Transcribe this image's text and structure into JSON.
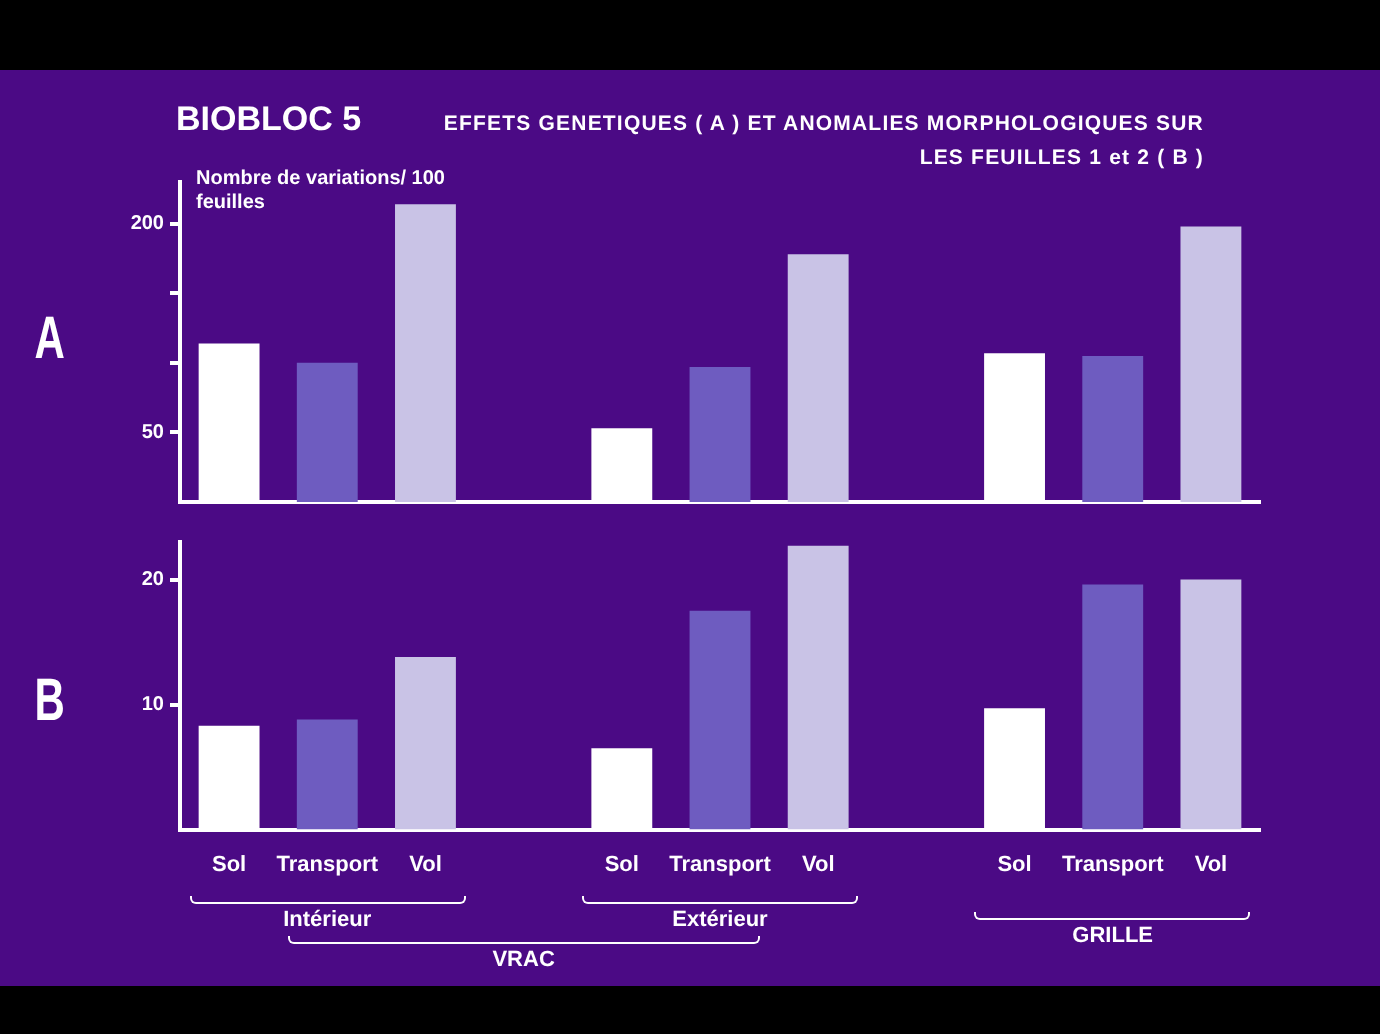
{
  "chart_data": [
    {
      "type": "bar",
      "title": "BIOBLOC 5",
      "subtitle": "EFFETS GENETIQUES ( A ) ET  ANOMALIES MORPHOLOGIQUES SUR LES FEUILLES 1 et 2 ( B )",
      "ylabel": "A",
      "annotations": [
        "Nombre de variations/ 100 feuilles"
      ],
      "categories": [
        null,
        null,
        null,
        null,
        null,
        null,
        null,
        null,
        null,
        null,
        null
      ],
      "values": [
        114,
        100,
        214,
        null,
        53,
        97,
        178,
        null,
        107,
        105,
        198
      ],
      "colors": [
        "#ffffff",
        "#6e5cc0",
        "#c9c3e6",
        null,
        "#ffffff",
        "#6e5cc0",
        "#c9c3e6",
        null,
        "#ffffff",
        "#6e5cc0",
        "#c9c3e6"
      ],
      "ylim": [
        0,
        230
      ],
      "yticks": [
        50,
        {
          "value": 100,
          "label": null
        },
        {
          "value": 150,
          "label": null
        },
        200
      ],
      "tick_labels": "y",
      "grid": false,
      "legend": false
    },
    {
      "type": "bar",
      "ylabel": "B",
      "annotations": [
        "Intérieur",
        "Extérieur",
        "VRAC",
        "GRILLE"
      ],
      "categories": [
        "Sol",
        "Transport",
        "Vol",
        null,
        "Sol",
        "Transport",
        "Vol",
        null,
        "Sol",
        "Transport",
        "Vol"
      ],
      "values": [
        8.3,
        8.8,
        13.8,
        null,
        6.5,
        17.5,
        22.7,
        null,
        9.7,
        19.6,
        20
      ],
      "colors": [
        "#ffffff",
        "#6e5cc0",
        "#c9c3e6",
        null,
        "#ffffff",
        "#6e5cc0",
        "#c9c3e6",
        null,
        "#ffffff",
        "#6e5cc0",
        "#c9c3e6"
      ],
      "ylim": [
        0,
        23
      ],
      "yticks": [
        10,
        20
      ],
      "grid": false,
      "legend": false
    }
  ]
}
